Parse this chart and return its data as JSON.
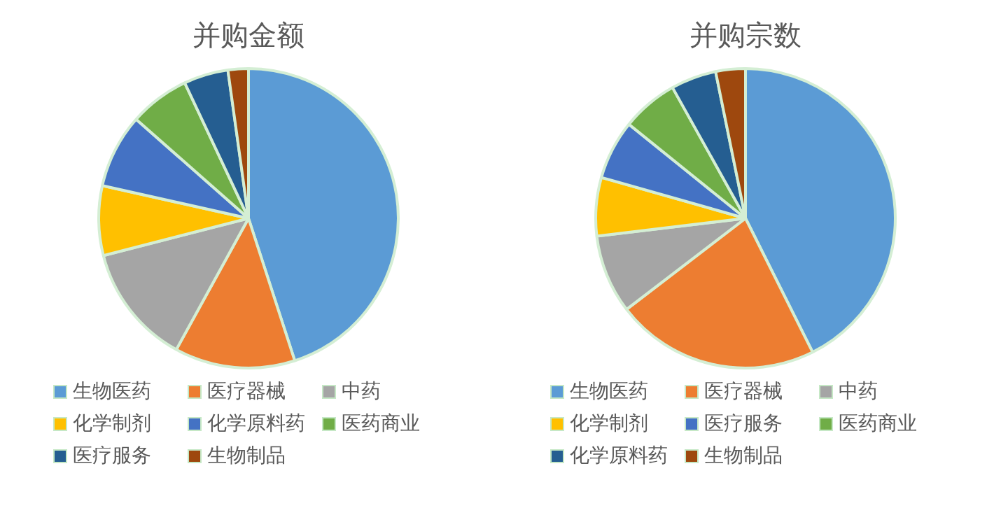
{
  "chart_data": [
    {
      "type": "pie",
      "title": "并购金额",
      "categories": [
        "生物医药",
        "医疗器械",
        "中药",
        "化学制剂",
        "化学原料药",
        "医药商业",
        "医疗服务",
        "生物制品"
      ],
      "values": [
        45,
        13,
        13,
        7.5,
        8,
        6.5,
        4.8,
        2.2
      ],
      "colors": [
        "#5b9bd5",
        "#ed7d31",
        "#a5a5a5",
        "#ffc000",
        "#4472c4",
        "#70ad47",
        "#255e91",
        "#9e480e"
      ],
      "legend": "bottom"
    },
    {
      "type": "pie",
      "title": "并购宗数",
      "categories": [
        "生物医药",
        "医疗器械",
        "中药",
        "化学制剂",
        "医疗服务",
        "医药商业",
        "化学原料药",
        "生物制品"
      ],
      "values": [
        42.6,
        22,
        8.5,
        6.3,
        6.4,
        6.1,
        4.9,
        3.2
      ],
      "colors": [
        "#5b9bd5",
        "#ed7d31",
        "#a5a5a5",
        "#ffc000",
        "#4472c4",
        "#70ad47",
        "#255e91",
        "#9e480e"
      ],
      "legend": "bottom"
    }
  ]
}
